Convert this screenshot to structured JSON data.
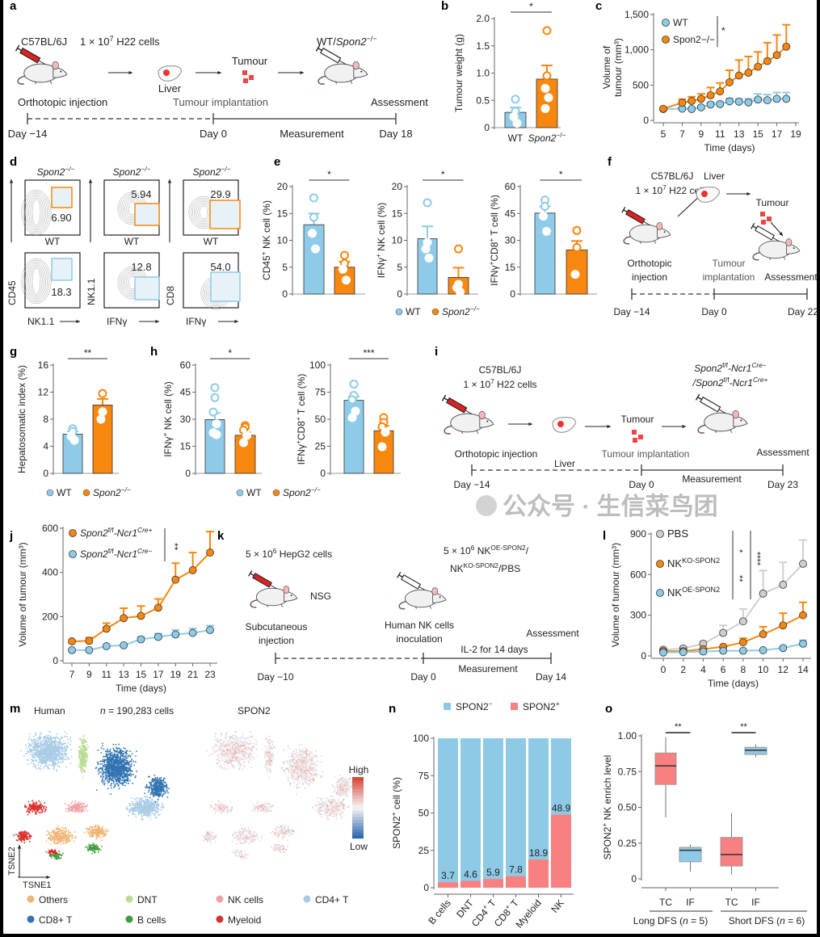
{
  "panel_letters": [
    "a",
    "b",
    "c",
    "d",
    "e",
    "f",
    "g",
    "h",
    "i",
    "j",
    "k",
    "l",
    "m",
    "n",
    "o"
  ],
  "colors": {
    "wt": "#8ecbe8",
    "ko": "#f7870f",
    "pbs": "#cfcfcf",
    "spon_neg": "#8ecae6",
    "spon_pos": "#f88080",
    "gate_wt": "#8ecbe8",
    "gate_ko": "#f7870f"
  },
  "legend_wt_ko": {
    "wt": "WT",
    "ko_italic": "Spon2",
    "ko_sup": "−/−"
  },
  "panels": {
    "a": {
      "strain": "C57BL/6J",
      "cells": [
        "1 × 10",
        "7",
        " H22 cells"
      ],
      "liver": "Liver",
      "tumour": "Tumour",
      "recipient": [
        "WT/",
        "Spon2",
        "−/−"
      ],
      "step1": "Orthotopic injection",
      "step2": "Tumour implantation",
      "step3": "Assessment",
      "day_start": "Day −14",
      "day_zero": "Day 0",
      "measurement": "Measurement",
      "day_end": "Day 18"
    },
    "d": {
      "ko_title": [
        "Spon2",
        "−/−"
      ],
      "wt_title": "WT",
      "columns": [
        {
          "y_axis": "CD45",
          "x_axis": "NK1.1",
          "ko_value": "6.90",
          "wt_value": "18.3"
        },
        {
          "y_axis": "NK1.1",
          "x_axis": "IFNγ",
          "ko_value": "5.94",
          "wt_value": "12.8"
        },
        {
          "y_axis": "CD8",
          "x_axis": "IFNγ",
          "ko_value": "29.9",
          "wt_value": "54.0"
        }
      ]
    },
    "f": {
      "strain": "C57BL/6J",
      "cells": [
        "1 × 10",
        "7",
        " H22 cells"
      ],
      "liver": "Liver",
      "tumour": "Tumour",
      "step1": [
        "Orthotopic",
        "injection"
      ],
      "step2": [
        "Tumour",
        "implantation"
      ],
      "step3": "Assessment",
      "day_start": "Day −14",
      "day_zero": "Day 0",
      "day_end": "Day 22"
    },
    "i": {
      "strain": "C57BL/6J",
      "cells": [
        "1 × 10",
        "7",
        " H22 cells"
      ],
      "liver": "Liver",
      "tumour": "Tumour",
      "recipient_1": [
        "Spon2",
        "f/f",
        "-Ncr1",
        "Cre−"
      ],
      "recipient_2": [
        "/Spon2",
        "f/f",
        "-Ncr1",
        "Cre+"
      ],
      "step1": "Orthotopic injection",
      "step2": "Tumour implantation",
      "step3": "Assessment",
      "day_start": "Day −14",
      "day_zero": "Day 0",
      "measurement": "Measurement",
      "day_end": "Day 23"
    },
    "k": {
      "cells": [
        "5 × 10",
        "6",
        " HepG2 cells"
      ],
      "mouse": "NSG",
      "treatment_1": [
        "5 × 10",
        "6",
        " NK",
        "OE-SPON2",
        "/"
      ],
      "treatment_2": [
        "NK",
        "KO-SPON2",
        "/PBS"
      ],
      "step1": [
        "Subcutaneous",
        "injection"
      ],
      "step2": [
        "Human NK cells",
        "inoculation"
      ],
      "step3": "Assessment",
      "il2": "IL-2 for 14 days",
      "measurement": "Measurement",
      "day_start": "Day −10",
      "day_zero": "Day 0",
      "day_end": "Day 14"
    },
    "m": {
      "left_title": "Human",
      "count": [
        "n",
        " = 190,283 cells"
      ],
      "right_title": "SPON2",
      "colorbar_high": "High",
      "colorbar_low": "Low",
      "axis_y": "TSNE2",
      "axis_x": "TSNE1",
      "clusters": [
        {
          "name": "Others",
          "color": "#f0b474"
        },
        {
          "name": "DNT",
          "color": "#b9dc92"
        },
        {
          "name": "NK cells",
          "color": "#f2a0a8"
        },
        {
          "name": "CD4+ T",
          "color": "#a9cce6"
        },
        {
          "name": "CD8+ T",
          "color": "#2f73b0"
        },
        {
          "name": "B cells",
          "color": "#3e9c3a"
        },
        {
          "name": "Myeloid",
          "color": "#d8302e"
        }
      ]
    },
    "watermark": "公众号 · 生信菜鸟团"
  },
  "chart_data": [
    {
      "id": "b",
      "type": "bar",
      "ylabel": "Tumour weight (g)",
      "ylim": [
        0,
        2
      ],
      "yticks": [
        0,
        0.5,
        1,
        1.5,
        2
      ],
      "ytick_labels": [
        "0",
        "0.5",
        "1.0",
        "1.5",
        "2.0"
      ],
      "significance": "*",
      "groups": [
        {
          "label": "WT",
          "color": "wt",
          "mean": 0.28,
          "sem": 0.09,
          "points": [
            0.52,
            0.3,
            0.2,
            0.08
          ]
        },
        {
          "label": "Spon2−/−",
          "color": "ko",
          "mean": 0.89,
          "sem": 0.25,
          "points": [
            1.78,
            0.95,
            0.72,
            0.55,
            0.35
          ]
        }
      ]
    },
    {
      "id": "c",
      "type": "line",
      "xlabel": "Time (days)",
      "ylabel": [
        "Volume of",
        "tumour (mm³)"
      ],
      "xlim": [
        5,
        19
      ],
      "xticks": [
        5,
        7,
        9,
        11,
        13,
        15,
        17,
        19
      ],
      "ylim": [
        0,
        1500
      ],
      "yticks": [
        0,
        500,
        1000,
        1500
      ],
      "ytick_labels": [
        "0",
        "500",
        "1,000",
        "1,500"
      ],
      "significance": "*",
      "x": [
        5,
        7,
        8,
        9,
        10,
        11,
        12,
        13,
        14,
        15,
        16,
        17,
        18
      ],
      "series": [
        {
          "name": "WT",
          "color": "wt",
          "values": [
            160,
            165,
            160,
            185,
            225,
            230,
            270,
            265,
            255,
            295,
            285,
            305,
            305
          ],
          "sem": [
            15,
            20,
            20,
            20,
            25,
            25,
            40,
            40,
            50,
            80,
            80,
            90,
            90
          ]
        },
        {
          "name": "Spon2−/−",
          "color": "ko",
          "values": [
            165,
            250,
            275,
            305,
            355,
            410,
            540,
            635,
            675,
            760,
            840,
            925,
            1045
          ],
          "sem": [
            0,
            50,
            60,
            70,
            110,
            120,
            170,
            220,
            230,
            210,
            260,
            285,
            310
          ]
        }
      ]
    },
    {
      "id": "e1",
      "type": "bar",
      "ylabel": [
        "CD45",
        "+",
        " NK cell (%)"
      ],
      "ylim": [
        0,
        20
      ],
      "yticks": [
        0,
        5,
        10,
        15,
        20
      ],
      "ytick_labels": [
        "0",
        "5",
        "10",
        "15",
        "20"
      ],
      "significance": "*",
      "groups": [
        {
          "label": "WT",
          "color": "wt",
          "mean": 12.9,
          "sem": 2.1,
          "points": [
            17.9,
            14.3,
            11.3,
            8.4
          ]
        },
        {
          "label": "Spon2−/−",
          "color": "ko",
          "mean": 5.0,
          "sem": 1.0,
          "points": [
            7.2,
            5.7,
            4.6,
            2.6
          ]
        }
      ]
    },
    {
      "id": "e2",
      "type": "bar",
      "ylabel": [
        "IFNγ",
        "+",
        " NK cell (%)"
      ],
      "ylim": [
        0,
        20
      ],
      "yticks": [
        0,
        5,
        10,
        15,
        20
      ],
      "ytick_labels": [
        "0",
        "5",
        "10",
        "15",
        "20"
      ],
      "significance": "*",
      "groups": [
        {
          "label": "WT",
          "color": "wt",
          "mean": 10.3,
          "sem": 2.3,
          "points": [
            17.0,
            9.6,
            8.4,
            6.7
          ]
        },
        {
          "label": "Spon2−/−",
          "color": "ko",
          "mean": 3.1,
          "sem": 1.8,
          "points": [
            8.4,
            1.8,
            1.2,
            0.4
          ]
        }
      ]
    },
    {
      "id": "e3",
      "type": "bar",
      "ylabel": [
        "IFNγ",
        "+",
        "CD8",
        "+",
        " T cell (%)"
      ],
      "ylim": [
        0,
        60
      ],
      "yticks": [
        0,
        15,
        30,
        45,
        60
      ],
      "ytick_labels": [
        "0",
        "15",
        "30",
        "45",
        "60"
      ],
      "significance": "*",
      "groups": [
        {
          "label": "WT",
          "color": "wt",
          "mean": 45.2,
          "sem": 3.7,
          "points": [
            52.5,
            49,
            43.5,
            35
          ]
        },
        {
          "label": "Spon2−/−",
          "color": "ko",
          "mean": 24.6,
          "sem": 5.0,
          "points": [
            35.5,
            26,
            11
          ]
        }
      ]
    },
    {
      "id": "g",
      "type": "bar",
      "ylabel": "Hepatosomatic index (%)",
      "ylim": [
        0,
        16
      ],
      "yticks": [
        0,
        4,
        8,
        12,
        16
      ],
      "ytick_labels": [
        "0",
        "4",
        "8",
        "12",
        "16"
      ],
      "significance": "**",
      "groups": [
        {
          "label": "WT",
          "color": "wt",
          "mean": 5.8,
          "sem": 0.4,
          "points": [
            6.6,
            6.2,
            5.5,
            4.9
          ]
        },
        {
          "label": "Spon2−/−",
          "color": "ko",
          "mean": 10.1,
          "sem": 0.9,
          "points": [
            11.8,
            9.1,
            8.0
          ]
        }
      ]
    },
    {
      "id": "h1",
      "type": "bar",
      "ylabel": [
        "IFNγ",
        "+",
        " NK cell (%)"
      ],
      "ylim": [
        0,
        60
      ],
      "yticks": [
        0,
        15,
        30,
        45,
        60
      ],
      "ytick_labels": [
        "0",
        "15",
        "30",
        "45",
        "60"
      ],
      "significance": "*",
      "groups": [
        {
          "label": "WT",
          "color": "wt",
          "mean": 29.8,
          "sem": 3.7,
          "points": [
            47.5,
            42,
            34,
            27.5,
            22.5,
            21.5
          ]
        },
        {
          "label": "Spon2−/−",
          "color": "ko",
          "mean": 21.1,
          "sem": 1.6,
          "points": [
            26.5,
            25.5,
            24,
            21,
            17
          ]
        }
      ]
    },
    {
      "id": "h2",
      "type": "bar",
      "ylabel": [
        "IFNγ",
        "+",
        "CD8",
        "+",
        " T cell (%)"
      ],
      "ylim": [
        0,
        100
      ],
      "yticks": [
        0,
        25,
        50,
        75,
        100
      ],
      "ytick_labels": [
        "0",
        "25",
        "50",
        "75",
        "100"
      ],
      "significance": "***",
      "groups": [
        {
          "label": "WT",
          "color": "wt",
          "mean": 67.5,
          "sem": 3.4,
          "points": [
            82.5,
            72,
            68,
            57.5,
            51.5
          ]
        },
        {
          "label": "Spon2−/−",
          "color": "ko",
          "mean": 39.4,
          "sem": 4.4,
          "points": [
            51.5,
            47,
            43,
            38,
            24.5
          ]
        }
      ]
    },
    {
      "id": "j",
      "type": "line",
      "xlabel": "Time (days)",
      "ylabel": "Volume of tumour (mm³)",
      "xlim": [
        7,
        23
      ],
      "xticks": [
        7,
        9,
        11,
        13,
        15,
        17,
        19,
        21,
        23
      ],
      "ylim": [
        0,
        600
      ],
      "yticks": [
        0,
        200,
        400,
        600
      ],
      "ytick_labels": [
        "0",
        "200",
        "400",
        "600"
      ],
      "significance": "**",
      "x": [
        7,
        9,
        11,
        13,
        15,
        17,
        19,
        21,
        23
      ],
      "series": [
        {
          "name": [
            "Spon2",
            "f/f",
            "-Ncr1",
            "Cre+"
          ],
          "color": "ko",
          "values": [
            88,
            90,
            145,
            193,
            203,
            240,
            367,
            410,
            490
          ],
          "sem": [
            0,
            15,
            25,
            45,
            45,
            40,
            75,
            80,
            95
          ]
        },
        {
          "name": [
            "Spon2",
            "f/f",
            "-Ncr1",
            "Cre−"
          ],
          "color": "wt",
          "values": [
            48,
            48,
            66,
            70,
            97,
            108,
            119,
            126,
            139
          ],
          "sem": [
            0,
            0,
            0,
            0,
            10,
            15,
            20,
            20,
            20
          ]
        }
      ]
    },
    {
      "id": "l",
      "type": "line",
      "xlabel": "Time (days)",
      "ylabel": "Volume of tumour (mm³)",
      "xlim": [
        0,
        14
      ],
      "xticks": [
        0,
        2,
        4,
        6,
        8,
        10,
        12,
        14
      ],
      "ylim": [
        0,
        900
      ],
      "yticks": [
        0,
        300,
        600,
        900
      ],
      "ytick_labels": [
        "0",
        "300",
        "600",
        "900"
      ],
      "significance": [
        "*",
        "**",
        "****"
      ],
      "x": [
        0,
        2,
        4,
        6,
        8,
        10,
        12,
        14
      ],
      "series": [
        {
          "name": [
            "PBS"
          ],
          "color": "pbs",
          "values": [
            45,
            55,
            90,
            170,
            255,
            460,
            525,
            680
          ],
          "sem": [
            0,
            0,
            15,
            55,
            90,
            170,
            165,
            175
          ]
        },
        {
          "name": [
            "NK",
            "KO-SPON2"
          ],
          "color": "ko",
          "values": [
            35,
            35,
            50,
            68,
            100,
            160,
            225,
            300
          ],
          "sem": [
            0,
            0,
            0,
            0,
            30,
            55,
            90,
            95
          ]
        },
        {
          "name": [
            "NK",
            "OE-SPON2"
          ],
          "color": "wt",
          "values": [
            25,
            28,
            32,
            38,
            38,
            42,
            58,
            90
          ],
          "sem": [
            0,
            0,
            0,
            0,
            0,
            0,
            0,
            25
          ]
        }
      ]
    },
    {
      "id": "n",
      "type": "bar",
      "stacked": true,
      "ylabel": [
        "SPON2",
        "+",
        " cell (%)"
      ],
      "ylim": [
        0,
        100
      ],
      "yticks": [
        0,
        25,
        50,
        75,
        100
      ],
      "ytick_labels": [
        "0",
        "25",
        "50",
        "75",
        "100"
      ],
      "categories": [
        "B cells",
        "DNT",
        [
          "CD4",
          "+",
          " T"
        ],
        [
          "CD8",
          "+",
          " T"
        ],
        "Myeloid",
        "NK"
      ],
      "values": [
        3.7,
        4.6,
        5.9,
        7.8,
        18.9,
        48.9
      ],
      "value_labels": [
        "3.7",
        "4.6",
        "5.9",
        "7.8",
        "18.9",
        "48.9"
      ],
      "legend": [
        {
          "name": [
            "SPON2",
            "−"
          ],
          "color": "spon_neg"
        },
        {
          "name": [
            "SPON2",
            "+"
          ],
          "color": "spon_pos"
        }
      ]
    },
    {
      "id": "o",
      "type": "box",
      "ylabel": [
        "SPON2",
        "+",
        " NK enrich level"
      ],
      "ylim": [
        0,
        1
      ],
      "yticks": [
        0,
        0.25,
        0.5,
        0.75,
        1
      ],
      "ytick_labels": [
        "0",
        "0.25",
        "0.50",
        "0.75",
        "1.00"
      ],
      "groups": [
        {
          "label": [
            "Long DFS (",
            "n",
            " = 5)"
          ],
          "significance": "**",
          "boxes": [
            {
              "label": "TC",
              "color": "spon_pos",
              "min": 0.43,
              "q1": 0.66,
              "median": 0.79,
              "q3": 0.88,
              "max": 0.99
            },
            {
              "label": "IF",
              "color": "spon_neg",
              "min": 0.05,
              "q1": 0.12,
              "median": 0.2,
              "q3": 0.22,
              "max": 0.24
            }
          ]
        },
        {
          "label": [
            "Short DFS (",
            "n",
            " = 6)"
          ],
          "significance": "**",
          "boxes": [
            {
              "label": "TC",
              "color": "spon_pos",
              "min": 0.03,
              "q1": 0.09,
              "median": 0.17,
              "q3": 0.29,
              "max": 0.46
            },
            {
              "label": "IF",
              "color": "spon_neg",
              "min": 0.85,
              "q1": 0.87,
              "median": 0.9,
              "q3": 0.92,
              "max": 0.94
            }
          ]
        }
      ]
    }
  ]
}
